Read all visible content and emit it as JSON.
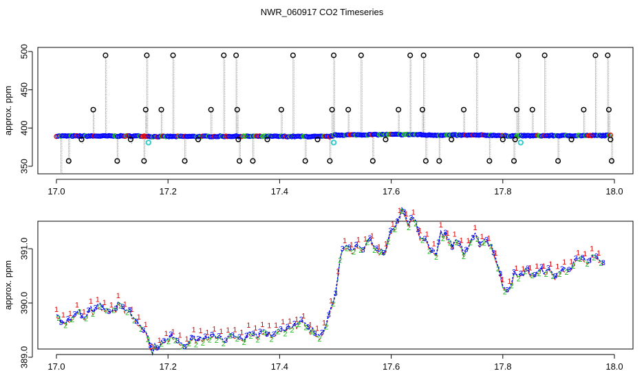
{
  "title": "NWR_060917  CO2 Timeseries",
  "chart_data": [
    {
      "type": "scatter",
      "ylabel": "approx. ppm",
      "xlim": [
        17.0,
        18.0
      ],
      "ylim": [
        340,
        500
      ],
      "x_ticks": [
        "17.0",
        "17.2",
        "17.4",
        "17.6",
        "17.8",
        "18.0"
      ],
      "y_ticks": [
        "350",
        "400",
        "450",
        "500"
      ],
      "baseline": [
        [
          17.0,
          389.5
        ],
        [
          17.16,
          389.5
        ],
        [
          17.17,
          388.8
        ],
        [
          17.33,
          389.2
        ],
        [
          17.49,
          388.8
        ],
        [
          17.5,
          390.8
        ],
        [
          17.6,
          391.5
        ],
        [
          17.65,
          391.4
        ],
        [
          17.66,
          390.8
        ],
        [
          17.79,
          390.5
        ],
        [
          17.8,
          389.8
        ],
        [
          17.99,
          390.2
        ]
      ],
      "cyan_points": [
        [
          17.165,
          381
        ],
        [
          17.497,
          381
        ],
        [
          17.832,
          381
        ]
      ],
      "spikes": [
        [
          17.008,
          340
        ],
        [
          17.022,
          357
        ],
        [
          17.045,
          385
        ],
        [
          17.066,
          424
        ],
        [
          17.088,
          495
        ],
        [
          17.109,
          357
        ],
        [
          17.133,
          385
        ],
        [
          17.157,
          357
        ],
        [
          17.16,
          424
        ],
        [
          17.162,
          495
        ],
        [
          17.188,
          424
        ],
        [
          17.209,
          495
        ],
        [
          17.23,
          357
        ],
        [
          17.254,
          385
        ],
        [
          17.277,
          424
        ],
        [
          17.3,
          495
        ],
        [
          17.322,
          495
        ],
        [
          17.324,
          424
        ],
        [
          17.326,
          385
        ],
        [
          17.328,
          357
        ],
        [
          17.352,
          357
        ],
        [
          17.378,
          385
        ],
        [
          17.403,
          424
        ],
        [
          17.424,
          495
        ],
        [
          17.446,
          357
        ],
        [
          17.468,
          385
        ],
        [
          17.49,
          357
        ],
        [
          17.494,
          424
        ],
        [
          17.497,
          495
        ],
        [
          17.523,
          424
        ],
        [
          17.546,
          495
        ],
        [
          17.567,
          357
        ],
        [
          17.59,
          385
        ],
        [
          17.613,
          424
        ],
        [
          17.634,
          495
        ],
        [
          17.656,
          424
        ],
        [
          17.658,
          495
        ],
        [
          17.662,
          357
        ],
        [
          17.686,
          357
        ],
        [
          17.708,
          385
        ],
        [
          17.73,
          424
        ],
        [
          17.753,
          495
        ],
        [
          17.776,
          357
        ],
        [
          17.8,
          385
        ],
        [
          17.82,
          357
        ],
        [
          17.822,
          385
        ],
        [
          17.825,
          424
        ],
        [
          17.828,
          495
        ],
        [
          17.853,
          424
        ],
        [
          17.875,
          495
        ],
        [
          17.899,
          357
        ],
        [
          17.923,
          385
        ],
        [
          17.945,
          424
        ],
        [
          17.966,
          495
        ],
        [
          17.988,
          495
        ],
        [
          17.99,
          424
        ],
        [
          17.993,
          385
        ],
        [
          17.995,
          357
        ]
      ],
      "colors": {
        "blue": "#0000ff",
        "green": "#22bb22",
        "red": "#dd0000",
        "cyan": "#33cccc",
        "black": "#000000",
        "grey": "#888888"
      }
    },
    {
      "type": "line",
      "ylabel": "approx. ppm",
      "xlim": [
        17.0,
        18.0
      ],
      "ylim": [
        389.0,
        391.9
      ],
      "x_ticks": [
        "17.0",
        "17.2",
        "17.4",
        "17.6",
        "17.8",
        "18.0"
      ],
      "y_ticks": [
        "389.0",
        "390.0",
        "391.0"
      ],
      "series_labels": [
        "1",
        "2",
        "3"
      ],
      "series_colors": [
        "#dd0000",
        "#22bb22",
        "#0000ff"
      ],
      "points": [
        [
          17.0,
          389.8
        ],
        [
          17.01,
          389.6
        ],
        [
          17.02,
          389.7
        ],
        [
          17.03,
          389.75
        ],
        [
          17.04,
          389.9
        ],
        [
          17.05,
          389.7
        ],
        [
          17.06,
          389.85
        ],
        [
          17.07,
          389.9
        ],
        [
          17.08,
          389.95
        ],
        [
          17.09,
          389.9
        ],
        [
          17.1,
          389.85
        ],
        [
          17.11,
          389.95
        ],
        [
          17.12,
          389.9
        ],
        [
          17.13,
          389.85
        ],
        [
          17.14,
          389.7
        ],
        [
          17.15,
          389.6
        ],
        [
          17.16,
          389.5
        ],
        [
          17.17,
          389.1
        ],
        [
          17.18,
          389.2
        ],
        [
          17.19,
          389.25
        ],
        [
          17.2,
          389.3
        ],
        [
          17.21,
          389.4
        ],
        [
          17.22,
          389.3
        ],
        [
          17.23,
          389.2
        ],
        [
          17.24,
          389.35
        ],
        [
          17.25,
          389.3
        ],
        [
          17.26,
          389.35
        ],
        [
          17.27,
          389.3
        ],
        [
          17.28,
          389.35
        ],
        [
          17.29,
          389.4
        ],
        [
          17.3,
          389.3
        ],
        [
          17.31,
          389.4
        ],
        [
          17.32,
          389.35
        ],
        [
          17.33,
          389.3
        ],
        [
          17.34,
          389.4
        ],
        [
          17.35,
          389.4
        ],
        [
          17.36,
          389.35
        ],
        [
          17.37,
          389.5
        ],
        [
          17.38,
          389.45
        ],
        [
          17.39,
          389.4
        ],
        [
          17.4,
          389.55
        ],
        [
          17.41,
          389.5
        ],
        [
          17.42,
          389.6
        ],
        [
          17.43,
          389.55
        ],
        [
          17.44,
          389.65
        ],
        [
          17.45,
          389.5
        ],
        [
          17.46,
          389.45
        ],
        [
          17.47,
          389.4
        ],
        [
          17.48,
          389.55
        ],
        [
          17.49,
          389.8
        ],
        [
          17.5,
          390.2
        ],
        [
          17.51,
          390.9
        ],
        [
          17.52,
          391.0
        ],
        [
          17.53,
          390.9
        ],
        [
          17.54,
          391.1
        ],
        [
          17.55,
          390.95
        ],
        [
          17.56,
          391.2
        ],
        [
          17.57,
          391.0
        ],
        [
          17.58,
          390.9
        ],
        [
          17.59,
          391.0
        ],
        [
          17.6,
          391.3
        ],
        [
          17.61,
          391.5
        ],
        [
          17.62,
          391.75
        ],
        [
          17.63,
          391.4
        ],
        [
          17.64,
          391.6
        ],
        [
          17.65,
          391.2
        ],
        [
          17.66,
          391.2
        ],
        [
          17.67,
          391.0
        ],
        [
          17.68,
          390.9
        ],
        [
          17.69,
          391.3
        ],
        [
          17.7,
          391.2
        ],
        [
          17.71,
          391.05
        ],
        [
          17.72,
          391.15
        ],
        [
          17.73,
          390.9
        ],
        [
          17.74,
          391.05
        ],
        [
          17.75,
          391.2
        ],
        [
          17.76,
          391.1
        ],
        [
          17.77,
          391.15
        ],
        [
          17.78,
          391.05
        ],
        [
          17.79,
          390.7
        ],
        [
          17.8,
          390.3
        ],
        [
          17.81,
          390.25
        ],
        [
          17.82,
          390.5
        ],
        [
          17.83,
          390.45
        ],
        [
          17.84,
          390.6
        ],
        [
          17.85,
          390.55
        ],
        [
          17.86,
          390.5
        ],
        [
          17.87,
          390.6
        ],
        [
          17.88,
          390.6
        ],
        [
          17.89,
          390.5
        ],
        [
          17.9,
          390.55
        ],
        [
          17.91,
          390.6
        ],
        [
          17.92,
          390.65
        ],
        [
          17.93,
          390.75
        ],
        [
          17.94,
          390.8
        ],
        [
          17.95,
          390.7
        ],
        [
          17.96,
          390.85
        ],
        [
          17.97,
          390.8
        ],
        [
          17.98,
          390.7
        ]
      ]
    }
  ]
}
